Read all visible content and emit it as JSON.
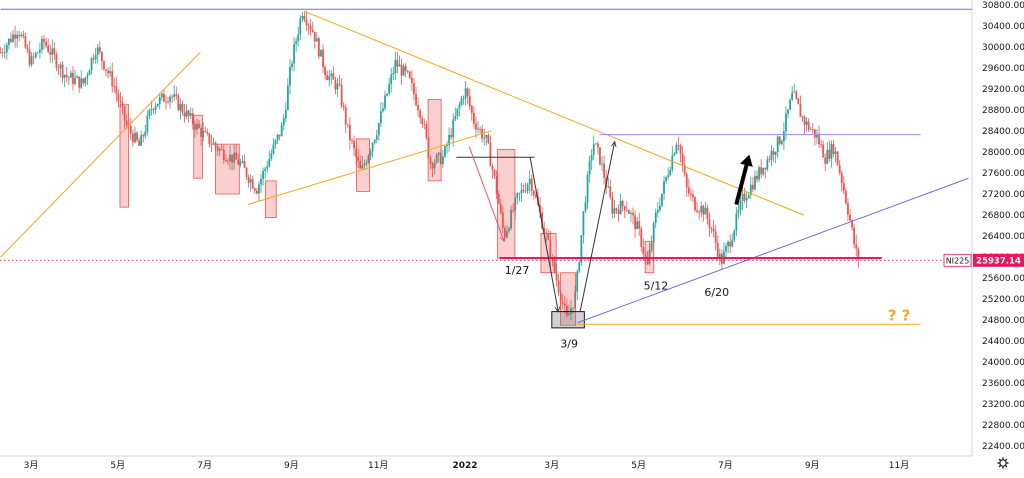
{
  "chart_data": {
    "type": "candlestick",
    "symbol": "NI225",
    "last_price": "25937.14",
    "y_axis": {
      "ylim": [
        22200,
        30900
      ],
      "ticks": [
        22400,
        22800,
        23200,
        23600,
        24000,
        24400,
        24800,
        25200,
        25600,
        26000,
        26400,
        26800,
        27200,
        27600,
        28000,
        28400,
        28800,
        29200,
        29600,
        30000,
        30400,
        30800
      ]
    },
    "x_axis": {
      "ticks": [
        {
          "label": "3月",
          "pos": 0.0,
          "bold": false
        },
        {
          "label": "5月",
          "pos": 2.0,
          "bold": false
        },
        {
          "label": "7月",
          "pos": 4.0,
          "bold": false
        },
        {
          "label": "9月",
          "pos": 6.0,
          "bold": false
        },
        {
          "label": "11月",
          "pos": 8.0,
          "bold": false
        },
        {
          "label": "2022",
          "pos": 10.0,
          "bold": true
        },
        {
          "label": "3月",
          "pos": 12.0,
          "bold": false
        },
        {
          "label": "5月",
          "pos": 14.0,
          "bold": false
        },
        {
          "label": "7月",
          "pos": 16.0,
          "bold": false
        },
        {
          "label": "9月",
          "pos": 18.0,
          "bold": false
        },
        {
          "label": "11月",
          "pos": 20.0,
          "bold": false
        }
      ]
    },
    "price_path": [
      [
        -0.7,
        29900
      ],
      [
        -0.3,
        30350
      ],
      [
        0.0,
        29700
      ],
      [
        0.3,
        30100
      ],
      [
        0.8,
        29450
      ],
      [
        1.2,
        29300
      ],
      [
        1.5,
        30000
      ],
      [
        1.9,
        29300
      ],
      [
        2.2,
        28500
      ],
      [
        2.5,
        28100
      ],
      [
        2.8,
        28900
      ],
      [
        3.2,
        29100
      ],
      [
        3.6,
        28700
      ],
      [
        4.0,
        28300
      ],
      [
        4.4,
        28000
      ],
      [
        4.8,
        27800
      ],
      [
        5.2,
        27300
      ],
      [
        5.5,
        27900
      ],
      [
        5.8,
        28500
      ],
      [
        6.0,
        29700
      ],
      [
        6.25,
        30700
      ],
      [
        6.5,
        30300
      ],
      [
        6.8,
        29500
      ],
      [
        7.1,
        29200
      ],
      [
        7.3,
        28400
      ],
      [
        7.6,
        27600
      ],
      [
        8.0,
        28500
      ],
      [
        8.4,
        29700
      ],
      [
        8.7,
        29400
      ],
      [
        9.0,
        28700
      ],
      [
        9.2,
        27800
      ],
      [
        9.5,
        27900
      ],
      [
        9.8,
        28700
      ],
      [
        10.0,
        29200
      ],
      [
        10.2,
        28600
      ],
      [
        10.5,
        28200
      ],
      [
        10.7,
        27400
      ],
      [
        10.9,
        26400
      ],
      [
        11.2,
        27100
      ],
      [
        11.5,
        27500
      ],
      [
        11.7,
        26900
      ],
      [
        11.9,
        26300
      ],
      [
        12.1,
        25600
      ],
      [
        12.35,
        24800
      ],
      [
        12.55,
        25300
      ],
      [
        12.75,
        27000
      ],
      [
        12.95,
        28200
      ],
      [
        13.1,
        27900
      ],
      [
        13.4,
        26900
      ],
      [
        13.7,
        27000
      ],
      [
        14.0,
        26500
      ],
      [
        14.2,
        25800
      ],
      [
        14.4,
        26800
      ],
      [
        14.7,
        27700
      ],
      [
        14.9,
        28300
      ],
      [
        15.1,
        27300
      ],
      [
        15.3,
        27000
      ],
      [
        15.5,
        26900
      ],
      [
        15.7,
        26500
      ],
      [
        15.9,
        25900
      ],
      [
        16.1,
        26300
      ],
      [
        16.4,
        27100
      ],
      [
        16.7,
        27500
      ],
      [
        17.0,
        27900
      ],
      [
        17.3,
        28300
      ],
      [
        17.55,
        29100
      ],
      [
        17.8,
        28600
      ],
      [
        18.1,
        28300
      ],
      [
        18.3,
        27900
      ],
      [
        18.5,
        28100
      ],
      [
        18.7,
        27400
      ],
      [
        18.85,
        26800
      ],
      [
        19.0,
        26100
      ],
      [
        19.1,
        25937
      ]
    ],
    "trendlines": [
      {
        "color": "#4a7fd4",
        "from": [
          -0.7,
          30720
        ],
        "to": [
          21.7,
          30720
        ]
      },
      {
        "color": "#f5a623",
        "from": [
          -0.7,
          26000
        ],
        "to": [
          3.9,
          29900
        ]
      },
      {
        "color": "#f5a623",
        "from": [
          6.3,
          30680
        ],
        "to": [
          17.8,
          26800
        ]
      },
      {
        "color": "#f5a623",
        "from": [
          5.0,
          27000
        ],
        "to": [
          10.6,
          28400
        ]
      },
      {
        "color": "#9b8ae6",
        "from": [
          13.1,
          28330
        ],
        "to": [
          20.5,
          28330
        ]
      },
      {
        "color": "#7b68d8",
        "from": [
          12.6,
          24750
        ],
        "to": [
          21.6,
          27500
        ]
      },
      {
        "color": "#f5a623",
        "from": [
          12.6,
          24720
        ],
        "to": [
          20.5,
          24720
        ]
      },
      {
        "color": "#333333",
        "from": [
          9.8,
          27900
        ],
        "to": [
          11.6,
          27900
        ]
      }
    ],
    "support_line": {
      "color": "#e8185a",
      "from": [
        10.8,
        25980
      ],
      "to": [
        19.6,
        25980
      ]
    },
    "last_price_line": {
      "color": "#e8185a",
      "value": 25937.14
    },
    "highlight_boxes": [
      {
        "from_x": 2.05,
        "to_x": 2.25,
        "low": 26950,
        "high": 28900
      },
      {
        "from_x": 3.75,
        "to_x": 3.95,
        "low": 27500,
        "high": 28700
      },
      {
        "from_x": 4.25,
        "to_x": 4.8,
        "low": 27200,
        "high": 28150
      },
      {
        "from_x": 5.4,
        "to_x": 5.65,
        "low": 26750,
        "high": 27450
      },
      {
        "from_x": 7.5,
        "to_x": 7.8,
        "low": 27250,
        "high": 28250
      },
      {
        "from_x": 9.15,
        "to_x": 9.45,
        "low": 27450,
        "high": 29000
      },
      {
        "from_x": 10.75,
        "to_x": 11.15,
        "low": 25980,
        "high": 28050
      },
      {
        "from_x": 11.75,
        "to_x": 12.1,
        "low": 25700,
        "high": 26450
      },
      {
        "from_x": 12.2,
        "to_x": 12.55,
        "low": 24700,
        "high": 25700
      },
      {
        "from_x": 14.15,
        "to_x": 14.35,
        "low": 25700,
        "high": 26300
      }
    ],
    "gray_box": {
      "from_x": 12.0,
      "to_x": 12.75,
      "low": 24650,
      "high": 24960
    },
    "arrows": [
      {
        "color": "#e8546f",
        "from": [
          10.1,
          28100
        ],
        "to": [
          10.9,
          26300
        ]
      },
      {
        "color": "#333333",
        "from": [
          11.5,
          27900
        ],
        "to": [
          12.15,
          24950
        ]
      },
      {
        "color": "#333333",
        "from": [
          12.65,
          24950
        ],
        "to": [
          13.45,
          28200
        ]
      }
    ],
    "bold_arrow": {
      "from": [
        16.25,
        27000
      ],
      "to": [
        16.55,
        27950
      ]
    },
    "annotations": [
      {
        "text": "1/27",
        "x": 11.2,
        "y": 25750
      },
      {
        "text": "3/9",
        "x": 12.4,
        "y": 24350
      },
      {
        "text": "5/12",
        "x": 14.4,
        "y": 25460
      },
      {
        "text": "6/20",
        "x": 15.8,
        "y": 25330
      },
      {
        "text": "? ?",
        "x": 20.0,
        "y": 24870,
        "style": "qmark"
      }
    ]
  }
}
